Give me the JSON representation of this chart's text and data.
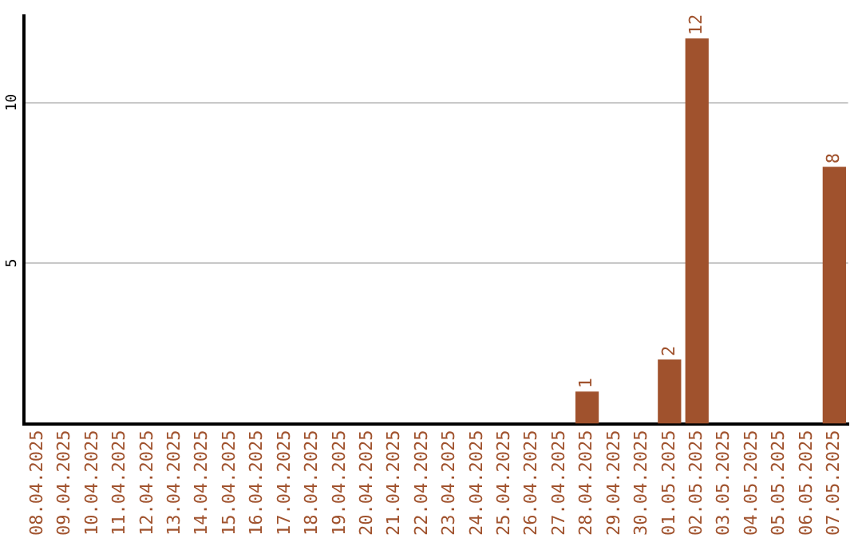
{
  "chart_data": {
    "type": "bar",
    "categories": [
      "08.04.2025",
      "09.04.2025",
      "10.04.2025",
      "11.04.2025",
      "12.04.2025",
      "13.04.2025",
      "14.04.2025",
      "15.04.2025",
      "16.04.2025",
      "17.04.2025",
      "18.04.2025",
      "19.04.2025",
      "20.04.2025",
      "21.04.2025",
      "22.04.2025",
      "23.04.2025",
      "24.04.2025",
      "25.04.2025",
      "26.04.2025",
      "27.04.2025",
      "28.04.2025",
      "29.04.2025",
      "30.04.2025",
      "01.05.2025",
      "02.05.2025",
      "03.05.2025",
      "04.05.2025",
      "05.05.2025",
      "06.05.2025",
      "07.05.2025"
    ],
    "values": [
      0,
      0,
      0,
      0,
      0,
      0,
      0,
      0,
      0,
      0,
      0,
      0,
      0,
      0,
      0,
      0,
      0,
      0,
      0,
      0,
      1,
      0,
      0,
      2,
      12,
      0,
      0,
      0,
      0,
      8
    ],
    "value_labels": [
      null,
      null,
      null,
      null,
      null,
      null,
      null,
      null,
      null,
      null,
      null,
      null,
      null,
      null,
      null,
      null,
      null,
      null,
      null,
      null,
      "1",
      null,
      null,
      "2",
      "12",
      null,
      null,
      null,
      null,
      "8"
    ],
    "color": "#a0522d",
    "ylim": [
      0,
      12.7
    ],
    "yticks": [
      5,
      10
    ],
    "grid": "y",
    "legend": false
  }
}
